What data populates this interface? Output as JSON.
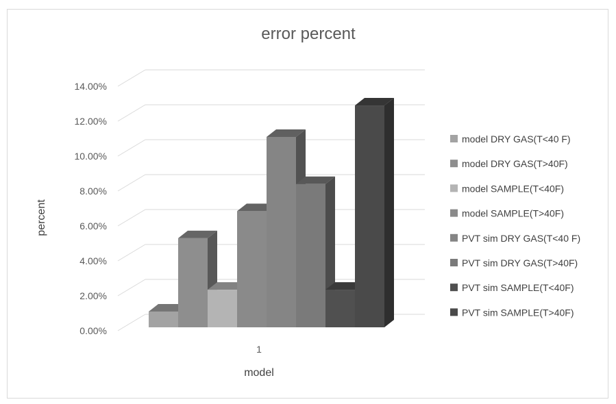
{
  "chart_data": {
    "type": "bar",
    "title": "error percent",
    "xlabel": "model",
    "ylabel": "percent",
    "categories": [
      "1"
    ],
    "ylim": [
      0,
      0.14
    ],
    "yticks": [
      "0.00%",
      "2.00%",
      "4.00%",
      "6.00%",
      "8.00%",
      "10.00%",
      "12.00%",
      "14.00%"
    ],
    "legend_position": "right",
    "series": [
      {
        "name": "model DRY GAS(T<40 F)",
        "values": [
          0.011
        ],
        "color": "#a3a3a3"
      },
      {
        "name": "model DRY GAS(T>40F)",
        "values": [
          0.053
        ],
        "color": "#8e8e8e"
      },
      {
        "name": "model SAMPLE(T<40F)",
        "values": [
          0.0235
        ],
        "color": "#b4b4b4"
      },
      {
        "name": "model SAMPLE(T>40F)",
        "values": [
          0.0685
        ],
        "color": "#8a8a8a"
      },
      {
        "name": "PVT sim DRY GAS(T<40 F)",
        "values": [
          0.111
        ],
        "color": "#858585"
      },
      {
        "name": "PVT sim DRY GAS(T>40F)",
        "values": [
          0.084
        ],
        "color": "#7a7a7a"
      },
      {
        "name": "PVT sim SAMPLE(T<40F)",
        "values": [
          0.0235
        ],
        "color": "#505050"
      },
      {
        "name": "PVT sim SAMPLE(T>40F)",
        "values": [
          0.129
        ],
        "color": "#4a4a4a"
      }
    ]
  }
}
